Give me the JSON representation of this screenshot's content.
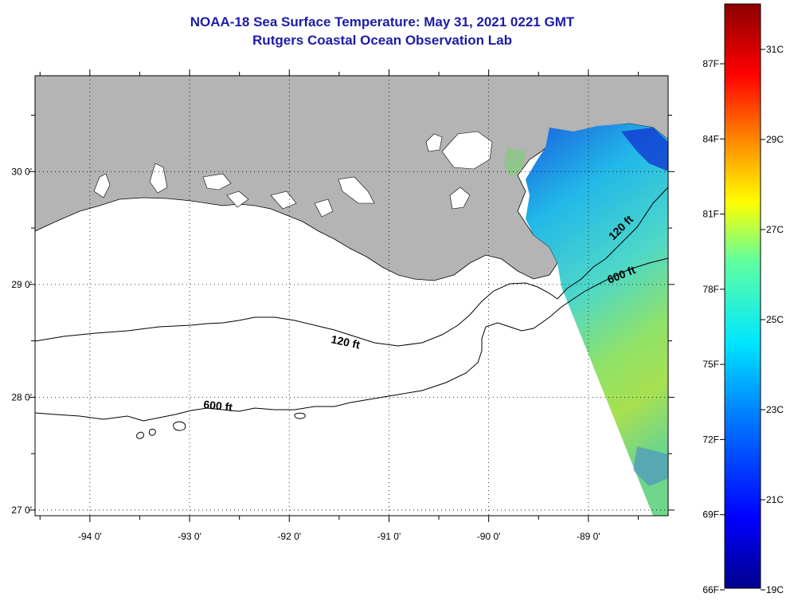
{
  "title": {
    "line1": "NOAA-18 Sea Surface Temperature:  May 31, 2021 0221 GMT",
    "line2": "Rutgers Coastal Ocean Observation Lab"
  },
  "map": {
    "lon_range": [
      -94.55,
      -88.2
    ],
    "lat_range": [
      26.95,
      30.85
    ],
    "lon_ticks": [
      {
        "value": -94,
        "label": "-94 0'"
      },
      {
        "value": -93,
        "label": "-93 0'"
      },
      {
        "value": -92,
        "label": "-92 0'"
      },
      {
        "value": -91,
        "label": "-91 0'"
      },
      {
        "value": -90,
        "label": "-90 0'"
      },
      {
        "value": -89,
        "label": "-89 0'"
      }
    ],
    "lat_ticks": [
      {
        "value": 30,
        "label": "30 0'"
      },
      {
        "value": 29,
        "label": "29 0'"
      },
      {
        "value": 28,
        "label": "28 0'"
      },
      {
        "value": 27,
        "label": "27 0'"
      }
    ],
    "contour_labels": [
      "120 ft",
      "600 ft",
      "120 ft",
      "600 ft"
    ],
    "land_color": "#b4b4b4"
  },
  "colorbar": {
    "fahrenheit": [
      "87F",
      "84F",
      "81F",
      "78F",
      "75F",
      "72F",
      "69F",
      "66F"
    ],
    "celsius": [
      "31C",
      "29C",
      "27C",
      "25C",
      "23C",
      "21C",
      "19C"
    ],
    "colors": [
      "#00008c",
      "#0000ff",
      "#0080ff",
      "#00e6ff",
      "#60ff9f",
      "#ffff00",
      "#ff9000",
      "#ff0000",
      "#8c0000"
    ]
  }
}
